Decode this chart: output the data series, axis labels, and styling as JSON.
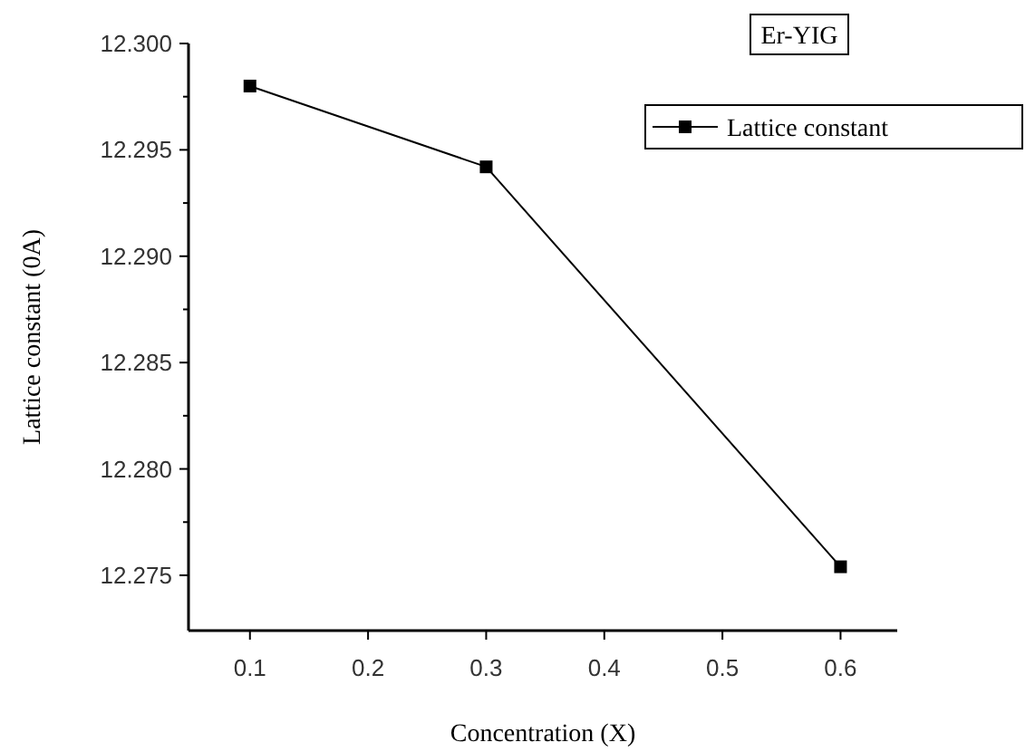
{
  "chart_data": {
    "type": "line",
    "xlabel": "Concentration (X)",
    "ylabel": "Lattice constant (0A)",
    "annotations": [
      "Er-YIG"
    ],
    "x": [
      0.1,
      0.3,
      0.6
    ],
    "series": [
      {
        "name": "Lattice constant",
        "color": "#000000",
        "values": [
          12.298,
          12.2942,
          12.2754
        ]
      }
    ],
    "xlim": [
      0.048,
      0.648
    ],
    "xticks": [
      0.1,
      0.2,
      0.3,
      0.4,
      0.5,
      0.6
    ],
    "ylim": [
      12.2724,
      12.3
    ],
    "yticks": [
      {
        "value": 12.275,
        "label": "12.275"
      },
      {
        "value": 12.2775,
        "label": null
      },
      {
        "value": 12.28,
        "label": "12.280"
      },
      {
        "value": 12.2825,
        "label": null
      },
      {
        "value": 12.285,
        "label": "12.285"
      },
      {
        "value": 12.2875,
        "label": null
      },
      {
        "value": 12.29,
        "label": "12.290"
      },
      {
        "value": 12.2925,
        "label": null
      },
      {
        "value": 12.295,
        "label": "12.295"
      },
      {
        "value": 12.2975,
        "label": null
      },
      {
        "value": 12.3,
        "label": "12.300"
      }
    ],
    "grid": false,
    "legend": "top right",
    "marker": "square",
    "line_style": "solid"
  }
}
